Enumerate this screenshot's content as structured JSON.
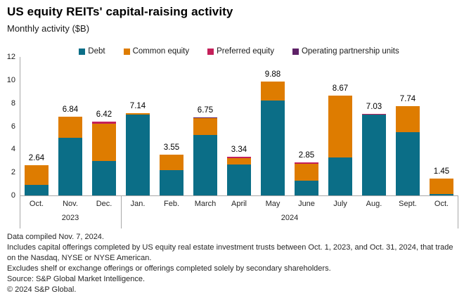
{
  "header": {
    "title": "US equity REITs' capital-raising activity",
    "subtitle": "Monthly activity ($B)"
  },
  "legend": {
    "items": [
      {
        "label": "Debt",
        "color": "#0B6E87"
      },
      {
        "label": "Common equity",
        "color": "#DE7C00"
      },
      {
        "label": "Preferred equity",
        "color": "#C4205A"
      },
      {
        "label": "Operating partnership units",
        "color": "#5E2167"
      }
    ]
  },
  "chart_data": {
    "type": "bar",
    "stacked": true,
    "title": "US equity REITs' capital-raising activity",
    "subtitle": "Monthly activity ($B)",
    "xlabel": "",
    "ylabel": "Monthly activity ($B)",
    "ylim": [
      0,
      12
    ],
    "yticks": [
      0,
      2,
      4,
      6,
      8,
      10,
      12
    ],
    "grid": false,
    "legend_position": "top",
    "categories": [
      "Oct.",
      "Nov.",
      "Dec.",
      "Jan.",
      "Feb.",
      "March",
      "April",
      "May",
      "June",
      "July",
      "Aug.",
      "Sept.",
      "Oct."
    ],
    "year_groups": [
      {
        "label": "2023",
        "start": 0,
        "end": 2
      },
      {
        "label": "2024",
        "start": 3,
        "end": 12
      }
    ],
    "series": [
      {
        "name": "Debt",
        "color": "#0B6E87",
        "values": [
          0.94,
          5.0,
          3.0,
          7.0,
          2.2,
          5.25,
          2.7,
          8.2,
          1.25,
          3.3,
          7.0,
          5.5,
          0.1
        ]
      },
      {
        "name": "Common equity",
        "color": "#DE7C00",
        "values": [
          1.7,
          1.84,
          3.22,
          0.14,
          1.35,
          1.45,
          0.55,
          1.68,
          1.48,
          5.37,
          0.0,
          2.24,
          1.35
        ]
      },
      {
        "name": "Preferred equity",
        "color": "#C4205A",
        "values": [
          0,
          0,
          0.2,
          0,
          0,
          0,
          0.09,
          0,
          0.12,
          0,
          0.03,
          0,
          0
        ]
      },
      {
        "name": "Operating partnership units",
        "color": "#5E2167",
        "values": [
          0,
          0,
          0,
          0,
          0,
          0.05,
          0,
          0,
          0,
          0,
          0,
          0,
          0
        ]
      }
    ],
    "totals": [
      2.64,
      6.84,
      6.42,
      7.14,
      3.55,
      6.75,
      3.34,
      9.88,
      2.85,
      8.67,
      7.03,
      7.74,
      1.45
    ],
    "total_labels": [
      "2.64",
      "6.84",
      "6.42",
      "7.14",
      "3.55",
      "6.75",
      "3.34",
      "9.88",
      "2.85",
      "8.67",
      "7.03",
      "7.74",
      "1.45"
    ]
  },
  "footnotes": {
    "lines": [
      "Data compiled Nov. 7, 2024.",
      "Includes capital offerings completed by US equity real estate investment trusts between Oct. 1, 2023, and Oct. 31, 2024, that trade on the Nasdaq, NYSE or NYSE American.",
      "Excludes shelf or exchange offerings or offerings completed solely by secondary shareholders.",
      "Source: S&P Global Market Intelligence.",
      "© 2024 S&P Global."
    ]
  }
}
